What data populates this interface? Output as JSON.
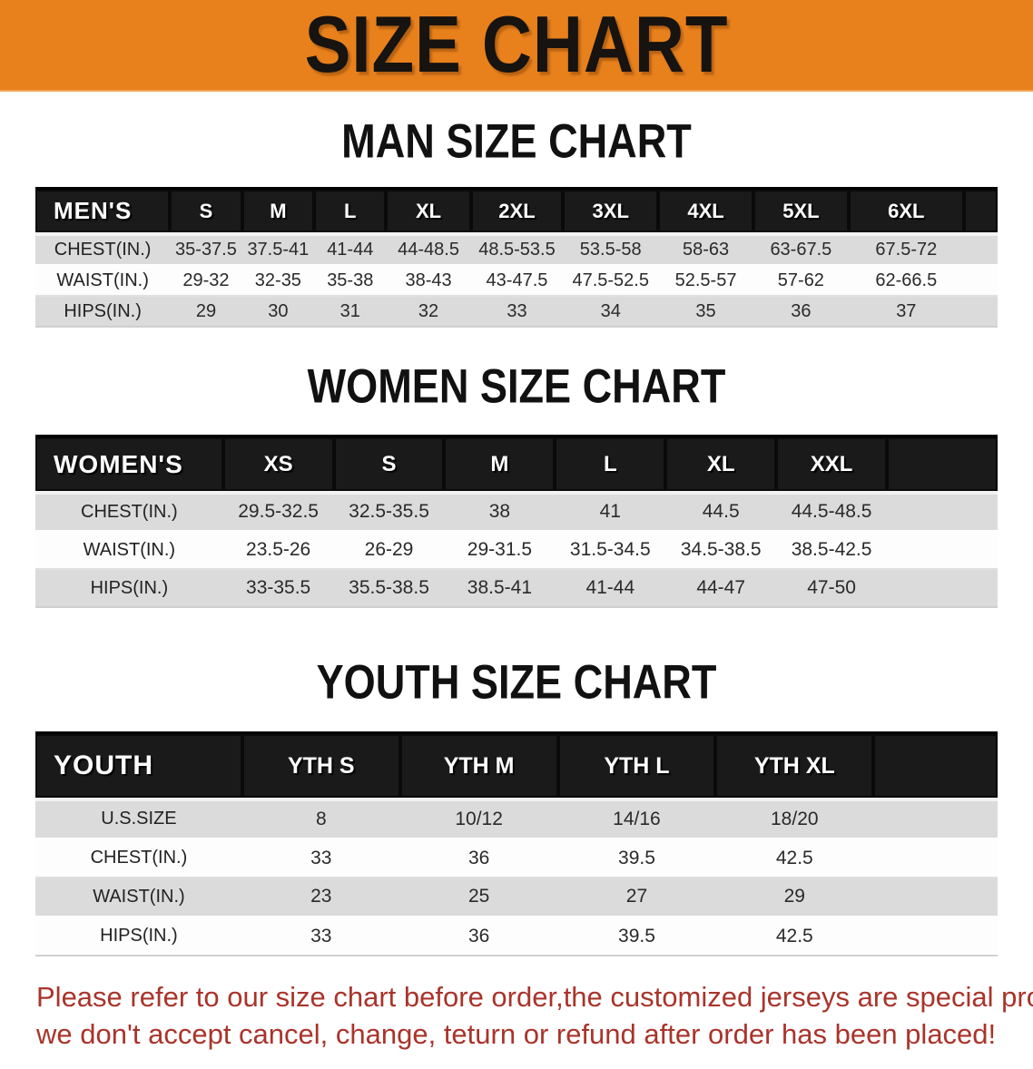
{
  "banner": {
    "title": "SIZE CHART",
    "bg_color": "#E8811C"
  },
  "sections": [
    {
      "key": "men",
      "heading": "MAN SIZE CHART",
      "group_label": "MEN'S",
      "columns": [
        "S",
        "M",
        "L",
        "XL",
        "2XL",
        "3XL",
        "4XL",
        "5XL",
        "6XL"
      ],
      "rows": [
        {
          "label": "CHEST(IN.)",
          "values": [
            "35-37.5",
            "37.5-41",
            "41-44",
            "44-48.5",
            "48.5-53.5",
            "53.5-58",
            "58-63",
            "63-67.5",
            "67.5-72"
          ]
        },
        {
          "label": "WAIST(IN.)",
          "values": [
            "29-32",
            "32-35",
            "35-38",
            "38-43",
            "43-47.5",
            "47.5-52.5",
            "52.5-57",
            "57-62",
            "62-66.5"
          ]
        },
        {
          "label": "HIPS(IN.)",
          "values": [
            "29",
            "30",
            "31",
            "32",
            "33",
            "34",
            "35",
            "36",
            "37"
          ]
        }
      ]
    },
    {
      "key": "women",
      "heading": "WOMEN SIZE CHART",
      "group_label": "WOMEN'S",
      "columns": [
        "XS",
        "S",
        "M",
        "L",
        "XL",
        "XXL"
      ],
      "rows": [
        {
          "label": "CHEST(IN.)",
          "values": [
            "29.5-32.5",
            "32.5-35.5",
            "38",
            "41",
            "44.5",
            "44.5-48.5"
          ]
        },
        {
          "label": "WAIST(IN.)",
          "values": [
            "23.5-26",
            "26-29",
            "29-31.5",
            "31.5-34.5",
            "34.5-38.5",
            "38.5-42.5"
          ]
        },
        {
          "label": "HIPS(IN.)",
          "values": [
            "33-35.5",
            "35.5-38.5",
            "38.5-41",
            "41-44",
            "44-47",
            "47-50"
          ]
        }
      ]
    },
    {
      "key": "youth",
      "heading": "YOUTH SIZE CHART",
      "group_label": "YOUTH",
      "columns": [
        "YTH S",
        "YTH M",
        "YTH L",
        "YTH XL"
      ],
      "rows": [
        {
          "label": "U.S.SIZE",
          "values": [
            "8",
            "10/12",
            "14/16",
            "18/20"
          ]
        },
        {
          "label": "CHEST(IN.)",
          "values": [
            "33",
            "36",
            "39.5",
            "42.5"
          ]
        },
        {
          "label": "WAIST(IN.)",
          "values": [
            "23",
            "25",
            "27",
            "29"
          ]
        },
        {
          "label": "HIPS(IN.)",
          "values": [
            "33",
            "36",
            "39.5",
            "42.5"
          ]
        }
      ]
    }
  ],
  "footer": {
    "line1": "Please refer to our size chart before order,the customized jerseys are special products,",
    "line2": "we don't accept cancel, change, teturn or refund after order has been placed!",
    "text_color": "#A9342B"
  }
}
